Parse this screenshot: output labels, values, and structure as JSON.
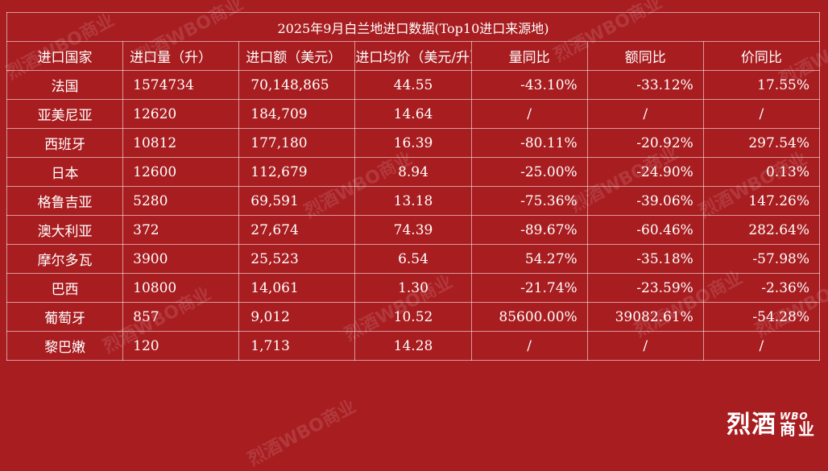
{
  "table": {
    "title": "2025年9月白兰地进口数据(Top10进口来源地)",
    "headers": [
      "进口国家",
      "进口量（升）",
      "进口额（美元）",
      "进口均价（美元/升）",
      "量同比",
      "额同比",
      "价同比"
    ],
    "rows": [
      [
        "法国",
        "1574734",
        "70,148,865",
        "44.55",
        "-43.10%",
        "-33.12%",
        "17.55%"
      ],
      [
        "亚美尼亚",
        "12620",
        "184,709",
        "14.64",
        "/",
        "/",
        "/"
      ],
      [
        "西班牙",
        "10812",
        "177,180",
        "16.39",
        "-80.11%",
        "-20.92%",
        "297.54%"
      ],
      [
        "日本",
        "12600",
        "112,679",
        "8.94",
        "-25.00%",
        "-24.90%",
        "0.13%"
      ],
      [
        "格鲁吉亚",
        "5280",
        "69,591",
        "13.18",
        "-75.36%",
        "-39.06%",
        "147.26%"
      ],
      [
        "澳大利亚",
        "372",
        "27,674",
        "74.39",
        "-89.67%",
        "-60.46%",
        "282.64%"
      ],
      [
        "摩尔多瓦",
        "3900",
        "25,523",
        "6.54",
        "54.27%",
        "-35.18%",
        "-57.98%"
      ],
      [
        "巴西",
        "10800",
        "14,061",
        "1.30",
        "-21.74%",
        "-23.59%",
        "-2.36%"
      ],
      [
        "葡萄牙",
        "857",
        "9,012",
        "10.52",
        "85600.00%",
        "39082.61%",
        "-54.28%"
      ],
      [
        "黎巴嫩",
        "120",
        "1,713",
        "14.28",
        "/",
        "/",
        "/"
      ]
    ]
  },
  "brand": {
    "name_cn": "烈酒",
    "name_en": "WBO",
    "sub": "商业"
  },
  "watermark_text": "烈酒WBO商业",
  "colors": {
    "background": "#a81d20",
    "text": "#ffffff",
    "grid": "#e8b4b4"
  }
}
